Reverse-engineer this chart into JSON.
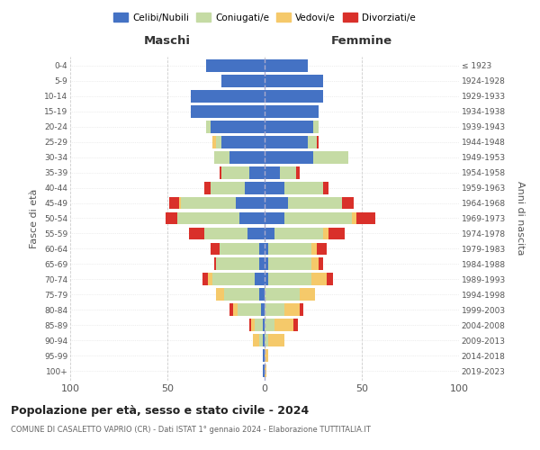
{
  "age_groups": [
    "0-4",
    "5-9",
    "10-14",
    "15-19",
    "20-24",
    "25-29",
    "30-34",
    "35-39",
    "40-44",
    "45-49",
    "50-54",
    "55-59",
    "60-64",
    "65-69",
    "70-74",
    "75-79",
    "80-84",
    "85-89",
    "90-94",
    "95-99",
    "100+"
  ],
  "birth_years": [
    "2019-2023",
    "2014-2018",
    "2009-2013",
    "2004-2008",
    "1999-2003",
    "1994-1998",
    "1989-1993",
    "1984-1988",
    "1979-1983",
    "1974-1978",
    "1969-1973",
    "1964-1968",
    "1959-1963",
    "1954-1958",
    "1949-1953",
    "1944-1948",
    "1939-1943",
    "1934-1938",
    "1929-1933",
    "1924-1928",
    "≤ 1923"
  ],
  "maschi_celibi": [
    30,
    22,
    38,
    38,
    28,
    22,
    18,
    8,
    10,
    15,
    13,
    9,
    3,
    3,
    5,
    3,
    2,
    1,
    1,
    1,
    1
  ],
  "maschi_coniugati": [
    0,
    0,
    0,
    0,
    2,
    3,
    8,
    14,
    18,
    28,
    32,
    22,
    20,
    22,
    22,
    18,
    12,
    4,
    2,
    0,
    0
  ],
  "maschi_vedovi": [
    0,
    0,
    0,
    0,
    0,
    2,
    0,
    0,
    0,
    1,
    0,
    0,
    0,
    0,
    2,
    4,
    2,
    2,
    3,
    0,
    0
  ],
  "maschi_divorziati": [
    0,
    0,
    0,
    0,
    0,
    0,
    0,
    1,
    3,
    5,
    6,
    8,
    5,
    1,
    3,
    0,
    2,
    1,
    0,
    0,
    0
  ],
  "femmine_celibi": [
    22,
    30,
    30,
    28,
    25,
    22,
    25,
    8,
    10,
    12,
    10,
    5,
    2,
    2,
    2,
    0,
    0,
    0,
    0,
    0,
    0
  ],
  "femmine_coniugati": [
    0,
    0,
    0,
    0,
    3,
    5,
    18,
    8,
    20,
    28,
    35,
    25,
    22,
    22,
    22,
    18,
    10,
    5,
    2,
    0,
    0
  ],
  "femmine_vedovi": [
    0,
    0,
    0,
    0,
    0,
    0,
    0,
    0,
    0,
    0,
    2,
    3,
    3,
    4,
    8,
    8,
    8,
    10,
    8,
    2,
    1
  ],
  "femmine_divorziati": [
    0,
    0,
    0,
    0,
    0,
    1,
    0,
    2,
    3,
    6,
    10,
    8,
    5,
    2,
    3,
    0,
    2,
    2,
    0,
    0,
    0
  ],
  "color_celibi": "#4472c4",
  "color_coniugati": "#c5dba4",
  "color_vedovi": "#f5c96a",
  "color_divorziati": "#d9302a",
  "title": "Popolazione per età, sesso e stato civile - 2024",
  "subtitle": "COMUNE DI CASALETTO VAPRIO (CR) - Dati ISTAT 1° gennaio 2024 - Elaborazione TUTTITALIA.IT",
  "xlabel_left": "Maschi",
  "xlabel_right": "Femmine",
  "ylabel_left": "Fasce di età",
  "ylabel_right": "Anni di nascita",
  "xlim": 100,
  "background": "#ffffff"
}
